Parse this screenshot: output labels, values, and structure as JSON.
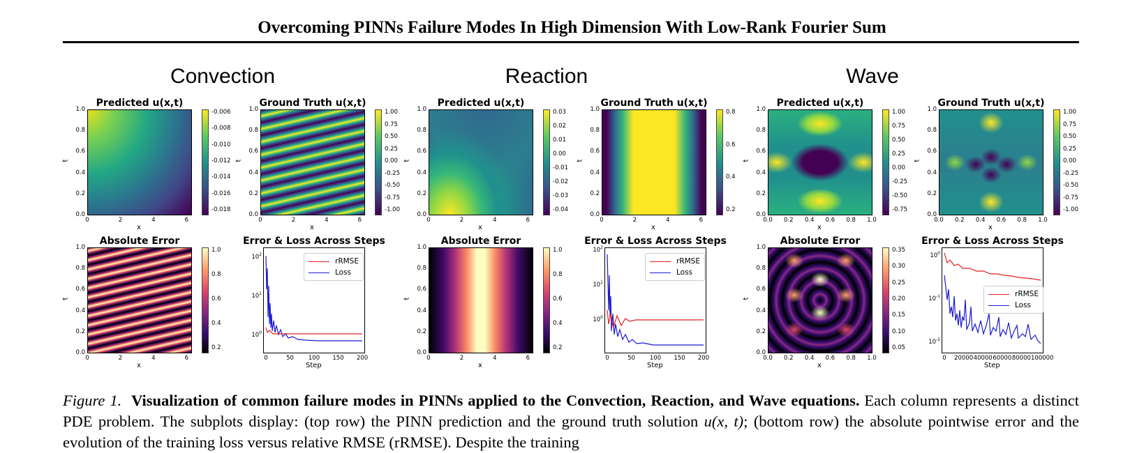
{
  "header": {
    "title": "Overcoming PINNs Failure Modes In High Dimension With Low-Rank Fourier Sum"
  },
  "sections": [
    {
      "name": "Convection"
    },
    {
      "name": "Reaction"
    },
    {
      "name": "Wave"
    }
  ],
  "plot_titles": {
    "predicted": "Predicted u(x,t)",
    "ground_truth": "Ground Truth u(x,t)",
    "absolute_error": "Absolute Error",
    "error_loss": "Error & Loss Across Steps"
  },
  "axis_labels": {
    "x": "x",
    "t": "t",
    "step": "Step"
  },
  "ticks": {
    "t": [
      "1.0",
      "0.8",
      "0.6",
      "0.4",
      "0.2",
      "0.0"
    ],
    "x_2pi": [
      "0",
      "2",
      "4",
      "6"
    ],
    "x_unit": [
      "0.0",
      "0.2",
      "0.4",
      "0.6",
      "0.8",
      "1.0"
    ],
    "step_200": [
      "0",
      "50",
      "100",
      "150",
      "200"
    ],
    "step_100000": [
      "0",
      "20000",
      "40000",
      "60000",
      "80000",
      "100000"
    ]
  },
  "colorbars": {
    "conv_pred": [
      "-0.006",
      "-0.008",
      "-0.010",
      "-0.012",
      "-0.014",
      "-0.016",
      "-0.018"
    ],
    "conv_gt": [
      "1.00",
      "0.75",
      "0.50",
      "0.25",
      "0.00",
      "-0.25",
      "-0.50",
      "-0.75",
      "-1.00"
    ],
    "conv_err": [
      "1.0",
      "0.8",
      "0.6",
      "0.4",
      "0.2"
    ],
    "reac_pred": [
      "0.03",
      "0.02",
      "0.01",
      "0.00",
      "-0.01",
      "-0.02",
      "-0.03",
      "-0.04"
    ],
    "reac_gt": [
      "0.8",
      "0.6",
      "0.4",
      "0.2"
    ],
    "reac_err": [
      "1.0",
      "0.8",
      "0.6",
      "0.4",
      "0.2"
    ],
    "wave_pred": [
      "1.00",
      "0.75",
      "0.50",
      "0.25",
      "0.00",
      "-0.25",
      "-0.50",
      "-0.75"
    ],
    "wave_gt": [
      "1.00",
      "0.75",
      "0.50",
      "0.25",
      "0.00",
      "-0.25",
      "-0.50",
      "-0.75",
      "-1.00"
    ],
    "wave_err": [
      "0.35",
      "0.30",
      "0.25",
      "0.20",
      "0.15",
      "0.10",
      "0.05"
    ]
  },
  "legend": {
    "rrmse": "rRMSE",
    "loss": "Loss"
  },
  "loss_plots": {
    "convection": {
      "yticks": [
        "10^2",
        "10^1",
        "10^0"
      ]
    },
    "reaction": {
      "yticks": [
        "10^2",
        "10^1",
        "10^0"
      ]
    },
    "wave": {
      "yticks": [
        "10^0",
        "10^-1",
        "10^-2"
      ]
    }
  },
  "caption": {
    "label": "Figure 1.",
    "bold": "Visualization of common failure modes in PINNs applied to the Convection, Reaction, and Wave equations.",
    "text1": "Each column represents a distinct PDE problem. The subplots display: (top row) the PINN prediction and the ground truth solution",
    "math": "u(x, t)",
    "text2": ";",
    "line3": "(bottom row) the absolute pointwise error and the evolution of the training loss versus relative RMSE (rRMSE). Despite the training"
  },
  "colors": {
    "rrmse": "#e02020",
    "loss": "#1a1ad0"
  }
}
